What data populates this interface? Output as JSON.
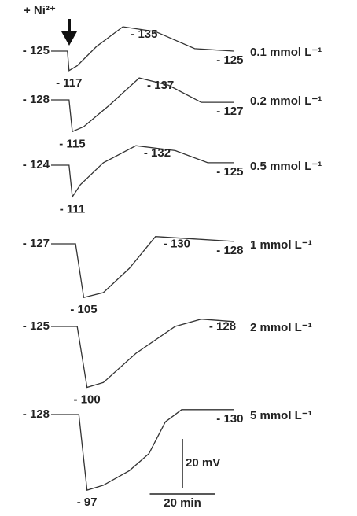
{
  "chart_data": {
    "type": "line",
    "annotation": "+ Ni²⁺",
    "color": "#333333",
    "scale_y": {
      "value": 20,
      "label": "20 mV"
    },
    "scale_x": {
      "value": 20,
      "label": "20 min"
    },
    "series": [
      {
        "name": "0.1 mmol L⁻¹",
        "x": [
          0,
          5,
          5.5,
          8,
          14,
          22,
          32,
          44,
          56
        ],
        "values": [
          -125,
          -125,
          -117,
          -119,
          -127,
          -135,
          -133,
          -126,
          -125
        ],
        "value_labels": [
          "- 125",
          null,
          "- 117",
          null,
          null,
          "- 135",
          null,
          null,
          "- 125"
        ]
      },
      {
        "name": "0.2 mmol L⁻¹",
        "x": [
          0,
          5.5,
          6.5,
          10,
          18,
          27,
          36,
          46,
          56
        ],
        "values": [
          -128,
          -128,
          -115,
          -117,
          -126,
          -137,
          -134,
          -127,
          -127
        ],
        "value_labels": [
          "- 128",
          null,
          "- 115",
          null,
          null,
          "- 137",
          null,
          null,
          "- 127"
        ]
      },
      {
        "name": "0.5 mmol L⁻¹",
        "x": [
          0,
          5.5,
          6.5,
          9,
          16,
          26,
          38,
          48,
          56
        ],
        "values": [
          -124,
          -124,
          -111,
          -116,
          -125,
          -132,
          -130,
          -125,
          -125
        ],
        "value_labels": [
          "- 124",
          null,
          "- 111",
          null,
          null,
          "- 132",
          null,
          null,
          "- 125"
        ]
      },
      {
        "name": "1 mmol L⁻¹",
        "x": [
          0,
          7.5,
          10,
          16,
          24,
          32,
          44,
          56
        ],
        "values": [
          -127,
          -127,
          -105,
          -107,
          -117,
          -130,
          -129,
          -128
        ],
        "value_labels": [
          "- 127",
          null,
          "- 105",
          null,
          null,
          "- 130",
          null,
          "- 128"
        ]
      },
      {
        "name": "2 mmol L⁻¹",
        "x": [
          0,
          8,
          11,
          16,
          26,
          38,
          46,
          56
        ],
        "values": [
          -125,
          -125,
          -100,
          -102,
          -114,
          -125,
          -128,
          -127
        ],
        "value_labels": [
          "- 125",
          null,
          "- 100",
          null,
          null,
          null,
          "- 128",
          null
        ]
      },
      {
        "name": "5 mmol L⁻¹",
        "x": [
          0,
          8.5,
          11,
          16,
          24,
          30,
          35,
          40,
          48,
          56
        ],
        "values": [
          -128,
          -128,
          -97,
          -99,
          -105,
          -112,
          -125,
          -130,
          -130,
          -130
        ],
        "value_labels": [
          "- 128",
          null,
          "- 97",
          null,
          null,
          null,
          null,
          null,
          null,
          "- 130"
        ]
      }
    ]
  }
}
